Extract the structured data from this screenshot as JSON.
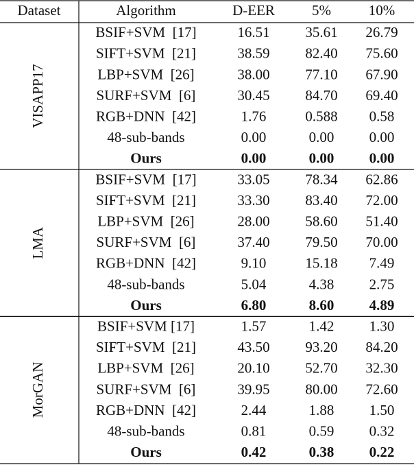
{
  "table": {
    "header": [
      "Dataset",
      "Algorithm",
      "D-EER",
      "5%",
      "10%"
    ],
    "groups": [
      {
        "dataset": "VISAPP17",
        "rows": [
          [
            "BSIF+SVM  [17]",
            "16.51",
            "35.61",
            "26.79"
          ],
          [
            "SIFT+SVM  [21]",
            "38.59",
            "82.40",
            "75.60"
          ],
          [
            "LBP+SVM  [26]",
            "38.00",
            "77.10",
            "67.90"
          ],
          [
            "SURF+SVM  [6]",
            "30.45",
            "84.70",
            "69.40"
          ],
          [
            "RGB+DNN  [42]",
            "1.76",
            "0.588",
            "0.58"
          ],
          [
            "48-sub-bands",
            "0.00",
            "0.00",
            "0.00"
          ],
          [
            "Ours",
            "0.00",
            "0.00",
            "0.00"
          ]
        ]
      },
      {
        "dataset": "LMA",
        "rows": [
          [
            "BSIF+SVM  [17]",
            "33.05",
            "78.34",
            "62.86"
          ],
          [
            "SIFT+SVM  [21]",
            "33.30",
            "83.40",
            "72.00"
          ],
          [
            "LBP+SVM  [26]",
            "28.00",
            "58.60",
            "51.40"
          ],
          [
            "SURF+SVM  [6]",
            "37.40",
            "79.50",
            "70.00"
          ],
          [
            "RGB+DNN  [42]",
            "9.10",
            "15.18",
            "7.49"
          ],
          [
            "48-sub-bands",
            "5.04",
            "4.38",
            "2.75"
          ],
          [
            "Ours",
            "6.80",
            "8.60",
            "4.89"
          ]
        ]
      },
      {
        "dataset": "MorGAN",
        "rows": [
          [
            "BSIF+SVM [17]",
            "1.57",
            "1.42",
            "1.30"
          ],
          [
            "SIFT+SVM  [21]",
            "43.50",
            "93.20",
            "84.20"
          ],
          [
            "LBP+SVM  [26]",
            "20.10",
            "52.70",
            "32.30"
          ],
          [
            "SURF+SVM  [6]",
            "39.95",
            "80.00",
            "72.60"
          ],
          [
            "RGB+DNN  [42]",
            "2.44",
            "1.88",
            "1.50"
          ],
          [
            "48-sub-bands",
            "0.81",
            "0.59",
            "0.32"
          ],
          [
            "Ours",
            "0.42",
            "0.38",
            "0.22"
          ]
        ]
      }
    ]
  }
}
